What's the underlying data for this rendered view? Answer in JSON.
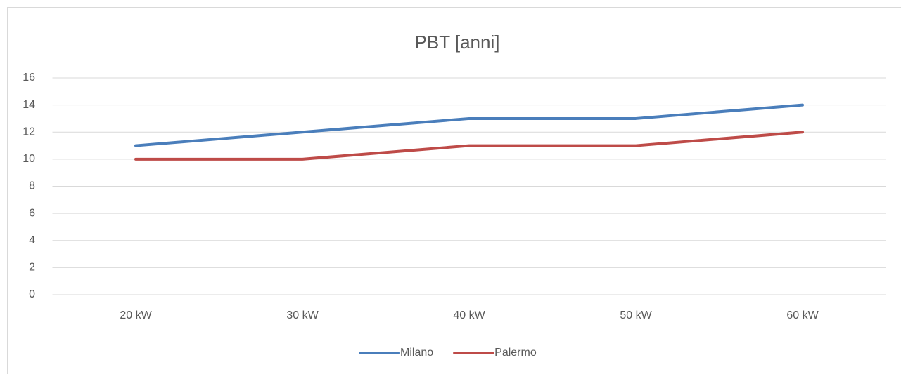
{
  "chart_data": {
    "type": "line",
    "title": "PBT [anni]",
    "categories": [
      "20 kW",
      "30 kW",
      "40 kW",
      "50 kW",
      "60 kW"
    ],
    "series": [
      {
        "name": "Milano",
        "color": "#4a7ebb",
        "values": [
          11,
          12,
          13,
          13,
          14
        ]
      },
      {
        "name": "Palermo",
        "color": "#be4b48",
        "values": [
          10,
          10,
          11,
          11,
          12
        ]
      }
    ],
    "ylim": [
      0,
      16
    ],
    "yticks": [
      0,
      2,
      4,
      6,
      8,
      10,
      12,
      14,
      16
    ],
    "grid": true,
    "legend": "bottom"
  }
}
